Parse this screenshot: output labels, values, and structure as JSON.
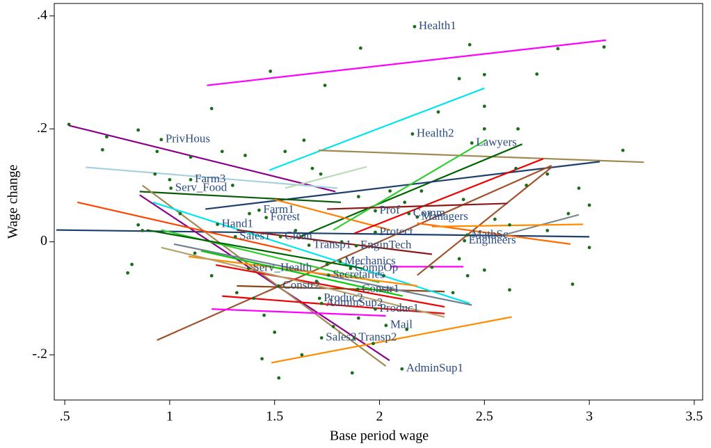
{
  "chart_data": {
    "type": "scatter",
    "x_label": "Base period wage",
    "y_label": "Wage change",
    "xlim": [
      0.45,
      3.54
    ],
    "ylim": [
      -0.28,
      0.422
    ],
    "xticks": [
      {
        "value": 0.5,
        "label": ".5"
      },
      1,
      1.5,
      2,
      2.5,
      3,
      3.5
    ],
    "yticks": [
      {
        "value": -0.2,
        "label": "-.2"
      },
      0,
      {
        "value": 0.2,
        "label": ".2"
      },
      {
        "value": 0.4,
        "label": ".4"
      }
    ],
    "grid": false,
    "points": {
      "color": "#1a6e1a",
      "x": [
        0.52,
        0.7,
        0.68,
        0.85,
        0.94,
        1.2,
        1.48,
        1.74,
        1.91,
        2.43,
        2.5,
        2.75,
        2.38,
        3.07,
        2.85,
        2.5,
        2.28,
        2.5,
        2.66,
        3.16,
        1.64,
        1.55,
        1.36,
        1.1,
        1.25,
        1.68,
        1.72,
        1.9,
        2.05,
        2.2,
        2.65,
        2.8,
        2.95,
        3.0,
        2.9,
        3.0,
        2.92,
        2.62,
        2.5,
        2.42,
        0.8,
        0.82,
        0.85,
        0.87,
        1.05,
        1.12,
        1.2,
        1.32,
        1.4,
        1.45,
        1.5,
        1.63,
        1.44,
        1.52,
        1.87,
        1.97,
        1.78,
        1.9,
        2.13,
        2.35,
        2.25,
        2.38,
        1.82,
        1.6,
        1.0,
        0.93,
        1.3,
        1.38,
        2.12,
        2.4,
        2.55,
        2.62,
        2.7,
        2.8,
        1.7,
        1.75,
        2.02
      ],
      "values": [
        0.208,
        0.186,
        0.163,
        0.198,
        0.16,
        0.236,
        0.302,
        0.277,
        0.343,
        0.349,
        0.296,
        0.297,
        0.289,
        0.345,
        0.342,
        0.24,
        0.23,
        0.2,
        0.2,
        0.162,
        0.18,
        0.16,
        0.153,
        0.15,
        0.16,
        0.13,
        0.12,
        0.08,
        0.09,
        0.09,
        0.13,
        0.12,
        0.095,
        0.065,
        0.05,
        -0.01,
        -0.075,
        -0.085,
        -0.05,
        -0.06,
        -0.055,
        -0.04,
        0.03,
        0.02,
        0.05,
        -0.02,
        -0.06,
        -0.09,
        -0.1,
        -0.13,
        -0.16,
        -0.2,
        -0.207,
        -0.241,
        -0.232,
        -0.18,
        -0.15,
        -0.135,
        -0.155,
        -0.09,
        -0.045,
        -0.03,
        0.0,
        0.02,
        0.11,
        0.12,
        0.1,
        0.05,
        0.07,
        0.075,
        0.04,
        0.03,
        0.1,
        0.02,
        -0.07,
        -0.04,
        -0.06
      ]
    },
    "annotations": [
      {
        "text": "Health1",
        "x": 2.167,
        "y": 0.381
      },
      {
        "text": "PrivHous",
        "x": 0.96,
        "y": 0.181
      },
      {
        "text": "Health2",
        "x": 2.157,
        "y": 0.191
      },
      {
        "text": "Lawyers",
        "x": 2.44,
        "y": 0.175
      },
      {
        "text": "Farm3",
        "x": 1.1,
        "y": 0.11
      },
      {
        "text": "Serv_Food",
        "x": 1.006,
        "y": 0.095
      },
      {
        "text": "Farm1",
        "x": 1.426,
        "y": 0.056
      },
      {
        "text": "Forest",
        "x": 1.46,
        "y": 0.043
      },
      {
        "text": "Hand1",
        "x": 1.228,
        "y": 0.031
      },
      {
        "text": "Managers",
        "x": 2.18,
        "y": 0.044
      },
      {
        "text": "Prof",
        "x": 1.98,
        "y": 0.055
      },
      {
        "text": "Comm",
        "x": 2.14,
        "y": 0.05
      },
      {
        "text": "Engineers",
        "x": 2.405,
        "y": 0.002
      },
      {
        "text": "MathSc",
        "x": 2.418,
        "y": 0.012
      },
      {
        "text": "Protect",
        "x": 1.98,
        "y": 0.017
      },
      {
        "text": "Sales1",
        "x": 1.313,
        "y": 0.009
      },
      {
        "text": "Clean",
        "x": 1.528,
        "y": 0.009
      },
      {
        "text": "Transp1",
        "x": 1.664,
        "y": -0.006
      },
      {
        "text": "EnginTech",
        "x": 1.889,
        "y": -0.007
      },
      {
        "text": "Mechanics",
        "x": 1.813,
        "y": -0.035
      },
      {
        "text": "CompOp",
        "x": 1.862,
        "y": -0.047
      },
      {
        "text": "Serv_Health",
        "x": 1.376,
        "y": -0.047
      },
      {
        "text": "Secretaries",
        "x": 1.757,
        "y": -0.059
      },
      {
        "text": "Constr2",
        "x": 1.519,
        "y": -0.078
      },
      {
        "text": "Constr1",
        "x": 1.896,
        "y": -0.084
      },
      {
        "text": "Produc2",
        "x": 1.714,
        "y": -0.1
      },
      {
        "text": "AdminSup2",
        "x": 1.724,
        "y": -0.109
      },
      {
        "text": "Produc1",
        "x": 1.98,
        "y": -0.119
      },
      {
        "text": "Mail",
        "x": 2.031,
        "y": -0.148
      },
      {
        "text": "Sales2",
        "x": 1.724,
        "y": -0.17
      },
      {
        "text": "Transp2",
        "x": 1.88,
        "y": -0.17
      },
      {
        "text": "AdminSup1",
        "x": 2.107,
        "y": -0.225
      }
    ],
    "lines": [
      {
        "color": "#ff00ff",
        "x": [
          1.178,
          3.079
        ],
        "values": [
          0.277,
          0.357
        ]
      },
      {
        "color": "#00e5ee",
        "x": [
          1.476,
          2.5
        ],
        "values": [
          0.127,
          0.272
        ]
      },
      {
        "color": "#8b008b",
        "x": [
          0.52,
          1.79
        ],
        "values": [
          0.206,
          0.089
        ]
      },
      {
        "color": "#a8d0e0",
        "x": [
          0.6,
          1.8
        ],
        "values": [
          0.132,
          0.095
        ]
      },
      {
        "color": "#b8dcb8",
        "x": [
          1.55,
          1.94
        ],
        "values": [
          0.095,
          0.133
        ]
      },
      {
        "color": "#a08850",
        "x": [
          1.71,
          3.26
        ],
        "values": [
          0.162,
          0.141
        ]
      },
      {
        "color": "#006400",
        "x": [
          1.62,
          2.68
        ],
        "values": [
          0.009,
          0.173
        ]
      },
      {
        "color": "#1c3f6e",
        "x": [
          0.46,
          3.0
        ],
        "values": [
          0.021,
          0.009
        ]
      },
      {
        "color": "#1c3f6e",
        "x": [
          1.17,
          3.05
        ],
        "values": [
          0.058,
          0.142
        ]
      },
      {
        "color": "#0a5a0a",
        "x": [
          0.857,
          1.816
        ],
        "values": [
          0.089,
          0.07
        ]
      },
      {
        "color": "#ff7f00",
        "x": [
          1.5,
          2.05
        ],
        "values": [
          0.075,
          0.021
        ]
      },
      {
        "color": "#a0522d",
        "x": [
          0.94,
          2.82
        ],
        "values": [
          -0.174,
          0.135
        ]
      },
      {
        "color": "#8b008b",
        "x": [
          0.857,
          2.048
        ],
        "values": [
          0.083,
          -0.21
        ]
      },
      {
        "color": "#a08850",
        "x": [
          0.87,
          2.03
        ],
        "values": [
          0.1,
          -0.22
        ]
      },
      {
        "color": "#ff8c00",
        "x": [
          1.485,
          2.63
        ],
        "values": [
          -0.214,
          -0.133
        ]
      },
      {
        "color": "#ff00ff",
        "x": [
          1.2,
          2.03
        ],
        "values": [
          -0.119,
          -0.131
        ]
      },
      {
        "color": "#ee0000",
        "x": [
          1.25,
          2.31
        ],
        "values": [
          -0.096,
          -0.127
        ]
      },
      {
        "color": "#ee0000",
        "x": [
          1.22,
          2.31
        ],
        "values": [
          -0.041,
          -0.115
        ]
      },
      {
        "color": "#8b4513",
        "x": [
          1.32,
          2.31
        ],
        "values": [
          -0.078,
          -0.088
        ]
      },
      {
        "color": "#ff00ff",
        "x": [
          2.05,
          2.4
        ],
        "values": [
          -0.044,
          -0.044
        ]
      },
      {
        "color": "#00e5ee",
        "x": [
          0.92,
          2.43
        ],
        "values": [
          0.07,
          -0.109
        ]
      },
      {
        "color": "#708090",
        "x": [
          1.02,
          2.44
        ],
        "values": [
          -0.004,
          -0.112
        ]
      },
      {
        "color": "#32cd32",
        "x": [
          0.96,
          2.0
        ],
        "values": [
          0.021,
          -0.072
        ]
      },
      {
        "color": "#32cd32",
        "x": [
          1.78,
          2.51
        ],
        "values": [
          0.021,
          0.181
        ]
      },
      {
        "color": "#ee0000",
        "x": [
          1.88,
          2.78
        ],
        "values": [
          0.015,
          0.147
        ]
      },
      {
        "color": "#a0522d",
        "x": [
          2.18,
          2.82
        ],
        "values": [
          -0.059,
          0.132
        ]
      },
      {
        "color": "#ff6a00",
        "x": [
          2.18,
          2.91
        ],
        "values": [
          0.033,
          -0.004
        ]
      },
      {
        "color": "#7a8b8b",
        "x": [
          2.58,
          2.95
        ],
        "values": [
          0.011,
          0.048
        ]
      },
      {
        "color": "#ff8c00",
        "x": [
          2.25,
          2.97
        ],
        "values": [
          0.027,
          0.031
        ]
      },
      {
        "color": "#8b1a1a",
        "x": [
          1.75,
          2.61
        ],
        "values": [
          0.058,
          0.068
        ]
      },
      {
        "color": "#ff8c00",
        "x": [
          1.09,
          2.18
        ],
        "values": [
          -0.026,
          -0.078
        ]
      },
      {
        "color": "#ff4500",
        "x": [
          0.56,
          1.58
        ],
        "values": [
          0.07,
          -0.016
        ]
      },
      {
        "color": "#00cc00",
        "x": [
          1.15,
          2.11
        ],
        "values": [
          -0.016,
          -0.096
        ]
      },
      {
        "color": "#006400",
        "x": [
          0.89,
          1.92
        ],
        "values": [
          0.021,
          -0.047
        ]
      },
      {
        "color": "#b5a06a",
        "x": [
          0.96,
          2.31
        ],
        "values": [
          -0.01,
          -0.133
        ]
      },
      {
        "color": "#8b1a1a",
        "x": [
          1.32,
          2.25
        ],
        "values": [
          0.021,
          -0.022
        ]
      }
    ]
  }
}
